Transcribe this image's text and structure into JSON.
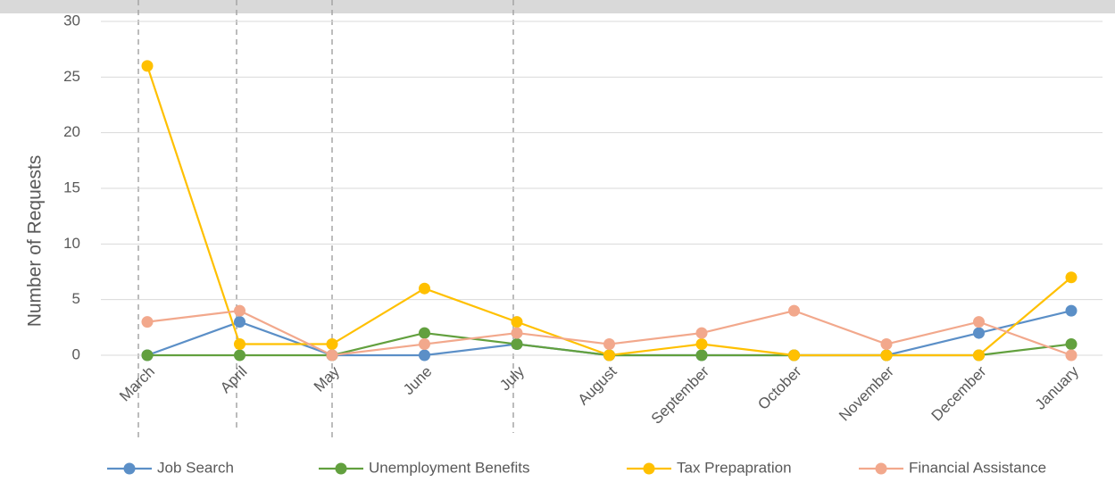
{
  "chart_data": {
    "type": "line",
    "y_axis_label": "Number of Requests",
    "categories": [
      "March",
      "April",
      "May",
      "June",
      "July",
      "August",
      "September",
      "October",
      "November",
      "December",
      "January"
    ],
    "series": [
      {
        "name": "Job Search",
        "color": "#5b8fc7",
        "values": [
          0,
          3,
          0,
          0,
          1,
          0,
          0,
          0,
          0,
          2,
          4
        ]
      },
      {
        "name": "Unemployment Benefits",
        "color": "#62a03e",
        "values": [
          0,
          0,
          0,
          2,
          1,
          0,
          0,
          0,
          0,
          0,
          1
        ]
      },
      {
        "name": "Tax Prepapration",
        "color": "#ffc000",
        "values": [
          26,
          1,
          1,
          6,
          3,
          0,
          1,
          0,
          0,
          0,
          7
        ]
      },
      {
        "name": "Financial Assistance",
        "color": "#f2a88c",
        "values": [
          3,
          4,
          0,
          1,
          2,
          1,
          2,
          4,
          1,
          3,
          0
        ]
      }
    ],
    "ylim": [
      0,
      30
    ],
    "yticks": [
      0,
      5,
      10,
      15,
      20,
      25,
      30
    ],
    "grid": true,
    "legend": "bottom"
  }
}
